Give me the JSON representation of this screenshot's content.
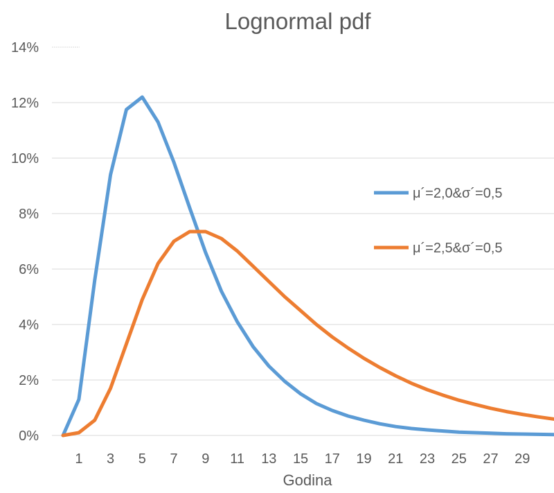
{
  "chart_data": {
    "type": "line",
    "title": "Lognormal pdf",
    "xlabel": "Godina",
    "ylabel": "",
    "x": [
      0,
      1,
      2,
      3,
      4,
      5,
      6,
      7,
      8,
      9,
      10,
      11,
      12,
      13,
      14,
      15,
      16,
      17,
      18,
      19,
      20,
      21,
      22,
      23,
      24,
      25,
      26,
      27,
      28,
      29,
      30,
      31,
      32
    ],
    "x_tick_labels": [
      "1",
      "3",
      "5",
      "7",
      "9",
      "11",
      "13",
      "15",
      "17",
      "19",
      "21",
      "23",
      "25",
      "27",
      "29"
    ],
    "x_tick_values": [
      1,
      3,
      5,
      7,
      9,
      11,
      13,
      15,
      17,
      19,
      21,
      23,
      25,
      27,
      29
    ],
    "y_tick_labels": [
      "0%",
      "2%",
      "4%",
      "6%",
      "8%",
      "10%",
      "12%",
      "14%"
    ],
    "y_tick_values": [
      0,
      2,
      4,
      6,
      8,
      10,
      12,
      14
    ],
    "ylim": [
      0,
      14
    ],
    "xlim": [
      -0.7,
      31
    ],
    "grid": true,
    "legend_position": "right",
    "series": [
      {
        "name": "μ´=2,0&σ´=0,5",
        "color": "#5b9bd5",
        "values": [
          0,
          1.3,
          5.6,
          9.4,
          11.75,
          12.2,
          11.3,
          9.85,
          8.2,
          6.6,
          5.2,
          4.1,
          3.2,
          2.5,
          1.95,
          1.5,
          1.15,
          0.9,
          0.7,
          0.55,
          0.42,
          0.32,
          0.25,
          0.2,
          0.16,
          0.12,
          0.1,
          0.08,
          0.06,
          0.05,
          0.04,
          0.03,
          0.02
        ]
      },
      {
        "name": "μ´=2,5&σ´=0,5",
        "color": "#ed7d31",
        "values": [
          0,
          0.1,
          0.55,
          1.7,
          3.3,
          4.9,
          6.2,
          7.0,
          7.35,
          7.35,
          7.1,
          6.65,
          6.1,
          5.55,
          5.0,
          4.5,
          4.0,
          3.55,
          3.15,
          2.78,
          2.45,
          2.15,
          1.88,
          1.65,
          1.45,
          1.27,
          1.12,
          0.98,
          0.86,
          0.76,
          0.67,
          0.59,
          0.52
        ]
      }
    ]
  }
}
